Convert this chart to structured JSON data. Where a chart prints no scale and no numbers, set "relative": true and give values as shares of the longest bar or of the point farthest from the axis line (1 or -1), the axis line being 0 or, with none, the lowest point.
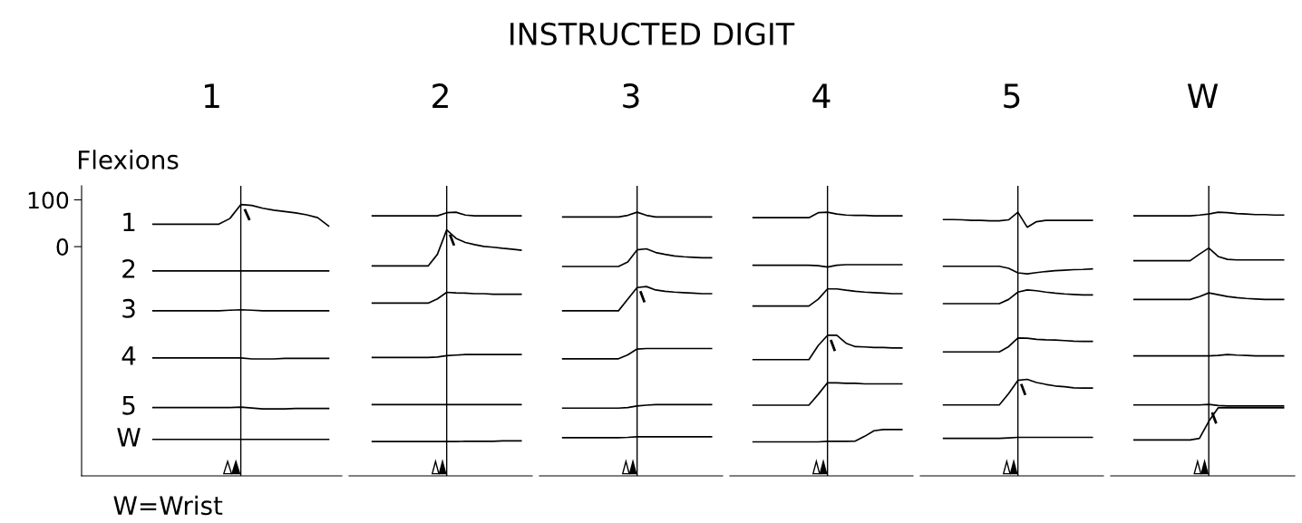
{
  "chart_data": [
    {
      "type": "line",
      "title": "1",
      "ylabel": "Flexions",
      "categories": [
        null,
        null,
        null,
        null,
        null,
        null,
        null,
        null,
        null,
        null,
        null,
        null,
        null,
        null,
        null,
        null,
        null
      ],
      "ylim": [
        -490,
        130
      ],
      "yticks": [
        0,
        100
      ],
      "tick_labels": "y",
      "grid": false,
      "legend": false,
      "annotations": [
        "INSTRUCTED DIGIT",
        "W=Wrist"
      ],
      "series": [
        {
          "name": "1",
          "color": "#000000",
          "values": [
            48,
            48,
            48,
            48,
            48,
            48,
            48,
            60,
            90,
            88,
            82,
            78,
            75,
            72,
            68,
            62,
            44
          ]
        },
        {
          "name": "2",
          "color": "#000000",
          "values": [
            -52,
            -52,
            -52,
            -52,
            -52,
            -52,
            -52,
            -52,
            -52,
            -52,
            -52,
            -52,
            -52,
            -52,
            -52,
            -52,
            -52
          ]
        },
        {
          "name": "3",
          "color": "#000000",
          "values": [
            -137,
            -137,
            -137,
            -137,
            -137,
            -137,
            -137,
            -136,
            -135,
            -136,
            -137,
            -137,
            -137,
            -137,
            -137,
            -137,
            -137
          ]
        },
        {
          "name": "4",
          "color": "#000000",
          "values": [
            -238,
            -238,
            -238,
            -238,
            -238,
            -238,
            -238,
            -238,
            -238,
            -240,
            -240,
            -240,
            -239,
            -239,
            -239,
            -239,
            -239
          ]
        },
        {
          "name": "5",
          "color": "#000000",
          "values": [
            -344,
            -344,
            -344,
            -344,
            -344,
            -344,
            -344,
            -344,
            -343,
            -345,
            -347,
            -347,
            -347,
            -346,
            -346,
            -346,
            -346
          ]
        },
        {
          "name": "W",
          "color": "#000000",
          "values": [
            -412,
            -412,
            -412,
            -412,
            -412,
            -412,
            -412,
            -412,
            -412,
            -412,
            -412,
            -412,
            -412,
            -412,
            -412,
            -412,
            -412
          ]
        }
      ]
    },
    {
      "type": "line",
      "title": "2",
      "categories": [
        null,
        null,
        null,
        null,
        null,
        null,
        null,
        null,
        null,
        null,
        null,
        null,
        null,
        null,
        null,
        null,
        null
      ],
      "relative": true,
      "tick_labels": false,
      "grid": false,
      "legend": false,
      "series": [
        {
          "color": "#000000",
          "values": [
            0.986,
            0.986,
            0.986,
            0.986,
            0.986,
            0.986,
            0.986,
            0.986,
            0.998,
            1.0,
            0.989,
            0.986,
            0.986,
            0.986,
            0.986,
            0.986,
            0.986
          ]
        },
        {
          "color": "#000000",
          "values": [
            0.796,
            0.796,
            0.796,
            0.796,
            0.796,
            0.796,
            0.796,
            0.84,
            0.933,
            0.901,
            0.885,
            0.877,
            0.87,
            0.867,
            0.863,
            0.86,
            0.856
          ]
        },
        {
          "color": "#000000",
          "values": [
            0.655,
            0.655,
            0.655,
            0.655,
            0.655,
            0.655,
            0.655,
            0.671,
            0.696,
            0.694,
            0.693,
            0.691,
            0.691,
            0.689,
            0.689,
            0.689,
            0.689
          ]
        },
        {
          "color": "#000000",
          "values": [
            0.449,
            0.449,
            0.449,
            0.449,
            0.449,
            0.449,
            0.449,
            0.451,
            0.456,
            0.458,
            0.46,
            0.46,
            0.46,
            0.46,
            0.46,
            0.46,
            0.46
          ]
        },
        {
          "color": "#000000",
          "values": [
            0.27,
            0.27,
            0.27,
            0.27,
            0.27,
            0.27,
            0.27,
            0.27,
            0.27,
            0.27,
            0.27,
            0.27,
            0.27,
            0.27,
            0.27,
            0.27,
            0.27
          ]
        },
        {
          "color": "#000000",
          "values": [
            0.13,
            0.13,
            0.13,
            0.13,
            0.13,
            0.13,
            0.13,
            0.13,
            0.13,
            0.13,
            0.131,
            0.131,
            0.131,
            0.131,
            0.133,
            0.133,
            0.133
          ]
        }
      ]
    },
    {
      "type": "line",
      "title": "3",
      "categories": [
        null,
        null,
        null,
        null,
        null,
        null,
        null,
        null,
        null,
        null,
        null,
        null,
        null,
        null,
        null,
        null,
        null
      ],
      "relative": true,
      "tick_labels": false,
      "grid": false,
      "legend": false,
      "series": [
        {
          "color": "#000000",
          "values": [
            0.982,
            0.982,
            0.982,
            0.982,
            0.982,
            0.982,
            0.982,
            0.988,
            1.0,
            0.988,
            0.982,
            0.982,
            0.982,
            0.982,
            0.982,
            0.982,
            0.982
          ]
        },
        {
          "color": "#000000",
          "values": [
            0.794,
            0.794,
            0.794,
            0.794,
            0.794,
            0.794,
            0.794,
            0.811,
            0.857,
            0.861,
            0.847,
            0.84,
            0.834,
            0.831,
            0.829,
            0.827,
            0.827
          ]
        },
        {
          "color": "#000000",
          "values": [
            0.626,
            0.626,
            0.626,
            0.626,
            0.626,
            0.626,
            0.626,
            0.67,
            0.714,
            0.718,
            0.705,
            0.7,
            0.697,
            0.695,
            0.693,
            0.691,
            0.691
          ]
        },
        {
          "color": "#000000",
          "values": [
            0.444,
            0.444,
            0.444,
            0.444,
            0.444,
            0.444,
            0.444,
            0.459,
            0.481,
            0.483,
            0.483,
            0.483,
            0.483,
            0.483,
            0.483,
            0.483,
            0.483
          ]
        },
        {
          "color": "#000000",
          "values": [
            0.257,
            0.257,
            0.257,
            0.257,
            0.257,
            0.257,
            0.257,
            0.259,
            0.265,
            0.268,
            0.27,
            0.27,
            0.27,
            0.27,
            0.27,
            0.27,
            0.27
          ]
        },
        {
          "color": "#000000",
          "values": [
            0.145,
            0.145,
            0.145,
            0.145,
            0.145,
            0.145,
            0.145,
            0.146,
            0.148,
            0.148,
            0.148,
            0.148,
            0.148,
            0.148,
            0.148,
            0.148,
            0.148
          ]
        }
      ]
    },
    {
      "type": "line",
      "title": "4",
      "categories": [
        null,
        null,
        null,
        null,
        null,
        null,
        null,
        null,
        null,
        null,
        null,
        null,
        null,
        null,
        null,
        null,
        null
      ],
      "relative": true,
      "tick_labels": false,
      "grid": false,
      "legend": false,
      "series": [
        {
          "color": "#000000",
          "values": [
            0.979,
            0.979,
            0.979,
            0.979,
            0.979,
            0.979,
            0.979,
            0.998,
            1.0,
            0.993,
            0.989,
            0.988,
            0.988,
            0.986,
            0.986,
            0.986,
            0.986
          ]
        },
        {
          "color": "#000000",
          "values": [
            0.799,
            0.799,
            0.799,
            0.799,
            0.799,
            0.799,
            0.799,
            0.797,
            0.792,
            0.799,
            0.801,
            0.801,
            0.801,
            0.801,
            0.801,
            0.801,
            0.801
          ]
        },
        {
          "color": "#000000",
          "values": [
            0.644,
            0.644,
            0.644,
            0.644,
            0.644,
            0.644,
            0.644,
            0.67,
            0.709,
            0.709,
            0.704,
            0.7,
            0.697,
            0.695,
            0.693,
            0.691,
            0.691
          ]
        },
        {
          "color": "#000000",
          "values": [
            0.441,
            0.441,
            0.441,
            0.441,
            0.441,
            0.441,
            0.441,
            0.494,
            0.533,
            0.533,
            0.503,
            0.49,
            0.489,
            0.487,
            0.487,
            0.485,
            0.485
          ]
        },
        {
          "color": "#000000",
          "values": [
            0.268,
            0.268,
            0.268,
            0.268,
            0.268,
            0.268,
            0.268,
            0.309,
            0.353,
            0.353,
            0.351,
            0.351,
            0.349,
            0.349,
            0.349,
            0.349,
            0.349
          ]
        },
        {
          "color": "#000000",
          "values": [
            0.129,
            0.129,
            0.129,
            0.129,
            0.129,
            0.129,
            0.129,
            0.129,
            0.131,
            0.131,
            0.131,
            0.132,
            0.15,
            0.171,
            0.176,
            0.176,
            0.176
          ]
        }
      ]
    },
    {
      "type": "line",
      "title": "5",
      "categories": [
        null,
        null,
        null,
        null,
        null,
        null,
        null,
        null,
        null,
        null,
        null,
        null,
        null,
        null,
        null,
        null,
        null
      ],
      "relative": true,
      "tick_labels": false,
      "grid": false,
      "legend": false,
      "series": [
        {
          "color": "#000000",
          "values": [
            0.972,
            0.972,
            0.971,
            0.969,
            0.969,
            0.967,
            0.967,
            0.971,
            1.0,
            0.943,
            0.964,
            0.969,
            0.969,
            0.969,
            0.969,
            0.969,
            0.969
          ]
        },
        {
          "color": "#000000",
          "values": [
            0.795,
            0.795,
            0.795,
            0.795,
            0.795,
            0.795,
            0.795,
            0.787,
            0.77,
            0.766,
            0.771,
            0.775,
            0.778,
            0.78,
            0.782,
            0.783,
            0.785
          ]
        },
        {
          "color": "#000000",
          "values": [
            0.653,
            0.653,
            0.653,
            0.653,
            0.653,
            0.653,
            0.653,
            0.669,
            0.697,
            0.705,
            0.702,
            0.697,
            0.693,
            0.69,
            0.688,
            0.686,
            0.686
          ]
        },
        {
          "color": "#000000",
          "values": [
            0.47,
            0.47,
            0.47,
            0.47,
            0.47,
            0.47,
            0.47,
            0.49,
            0.523,
            0.522,
            0.518,
            0.516,
            0.515,
            0.513,
            0.511,
            0.51,
            0.51
          ]
        },
        {
          "color": "#000000",
          "values": [
            0.269,
            0.269,
            0.269,
            0.269,
            0.269,
            0.269,
            0.269,
            0.312,
            0.362,
            0.366,
            0.354,
            0.347,
            0.341,
            0.338,
            0.334,
            0.333,
            0.333
          ]
        },
        {
          "color": "#000000",
          "values": [
            0.142,
            0.142,
            0.142,
            0.142,
            0.142,
            0.142,
            0.142,
            0.144,
            0.146,
            0.146,
            0.146,
            0.146,
            0.146,
            0.146,
            0.146,
            0.146,
            0.146
          ]
        }
      ]
    },
    {
      "type": "line",
      "title": "W",
      "categories": [
        null,
        null,
        null,
        null,
        null,
        null,
        null,
        null,
        null,
        null,
        null,
        null,
        null,
        null,
        null,
        null,
        null
      ],
      "relative": true,
      "tick_labels": false,
      "grid": false,
      "legend": false,
      "series": [
        {
          "color": "#000000",
          "values": [
            0.986,
            0.986,
            0.986,
            0.986,
            0.986,
            0.986,
            0.986,
            0.989,
            0.993,
            1.0,
            0.998,
            0.995,
            0.993,
            0.991,
            0.991,
            0.989,
            0.989
          ]
        },
        {
          "color": "#000000",
          "values": [
            0.816,
            0.816,
            0.816,
            0.816,
            0.816,
            0.816,
            0.816,
            0.841,
            0.864,
            0.832,
            0.821,
            0.819,
            0.819,
            0.819,
            0.819,
            0.819,
            0.819
          ]
        },
        {
          "color": "#000000",
          "values": [
            0.669,
            0.669,
            0.669,
            0.669,
            0.669,
            0.669,
            0.669,
            0.68,
            0.694,
            0.687,
            0.68,
            0.676,
            0.673,
            0.671,
            0.669,
            0.669,
            0.669
          ]
        },
        {
          "color": "#000000",
          "values": [
            0.455,
            0.455,
            0.455,
            0.455,
            0.455,
            0.455,
            0.455,
            0.455,
            0.455,
            0.457,
            0.46,
            0.458,
            0.457,
            0.455,
            0.455,
            0.455,
            0.455
          ]
        },
        {
          "color": "#000000",
          "values": [
            0.269,
            0.269,
            0.269,
            0.269,
            0.269,
            0.269,
            0.269,
            0.269,
            0.271,
            0.267,
            0.265,
            0.265,
            0.265,
            0.265,
            0.265,
            0.265,
            0.265
          ]
        },
        {
          "color": "#000000",
          "values": [
            0.136,
            0.136,
            0.136,
            0.136,
            0.136,
            0.136,
            0.136,
            0.142,
            0.207,
            0.258,
            0.258,
            0.258,
            0.258,
            0.258,
            0.258,
            0.258,
            0.258
          ]
        }
      ]
    }
  ]
}
